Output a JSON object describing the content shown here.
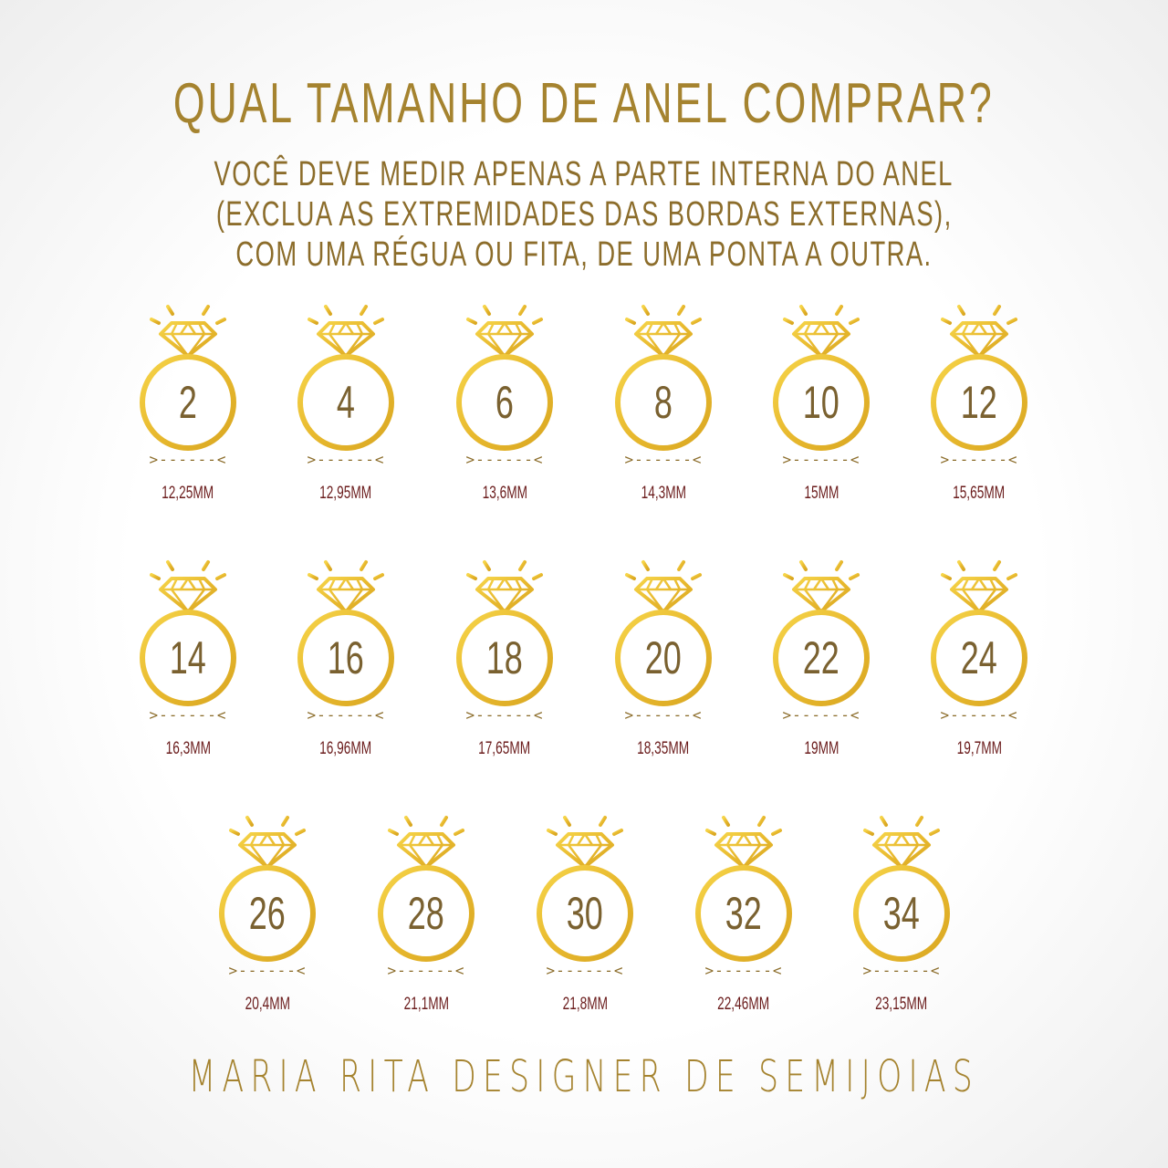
{
  "title": "QUAL TAMANHO DE ANEL COMPRAR?",
  "instructions": [
    "VOCÊ DEVE MEDIR APENAS A PARTE INTERNA DO ANEL",
    "(EXCLUA AS EXTREMIDADES DAS BORDAS EXTERNAS),",
    "COM UMA RÉGUA OU FITA, DE UMA PONTA A OUTRA."
  ],
  "ring_icon": "diamond-ring-icon",
  "measure_marker": ">------<",
  "colors": {
    "gold": "#e8b92e",
    "title": "#a5832f",
    "number": "#7a6130",
    "measurement": "#6b1d1d"
  },
  "sizes": [
    {
      "size": "2",
      "mm": "12,25MM"
    },
    {
      "size": "4",
      "mm": "12,95MM"
    },
    {
      "size": "6",
      "mm": "13,6MM"
    },
    {
      "size": "8",
      "mm": "14,3MM"
    },
    {
      "size": "10",
      "mm": "15MM"
    },
    {
      "size": "12",
      "mm": "15,65MM"
    },
    {
      "size": "14",
      "mm": "16,3MM"
    },
    {
      "size": "16",
      "mm": "16,96MM"
    },
    {
      "size": "18",
      "mm": "17,65MM"
    },
    {
      "size": "20",
      "mm": "18,35MM"
    },
    {
      "size": "22",
      "mm": "19MM"
    },
    {
      "size": "24",
      "mm": "19,7MM"
    },
    {
      "size": "26",
      "mm": "20,4MM"
    },
    {
      "size": "28",
      "mm": "21,1MM"
    },
    {
      "size": "30",
      "mm": "21,8MM"
    },
    {
      "size": "32",
      "mm": "22,46MM"
    },
    {
      "size": "34",
      "mm": "23,15MM"
    }
  ],
  "footer": "MARIA RITA DESIGNER DE SEMIJOIAS"
}
